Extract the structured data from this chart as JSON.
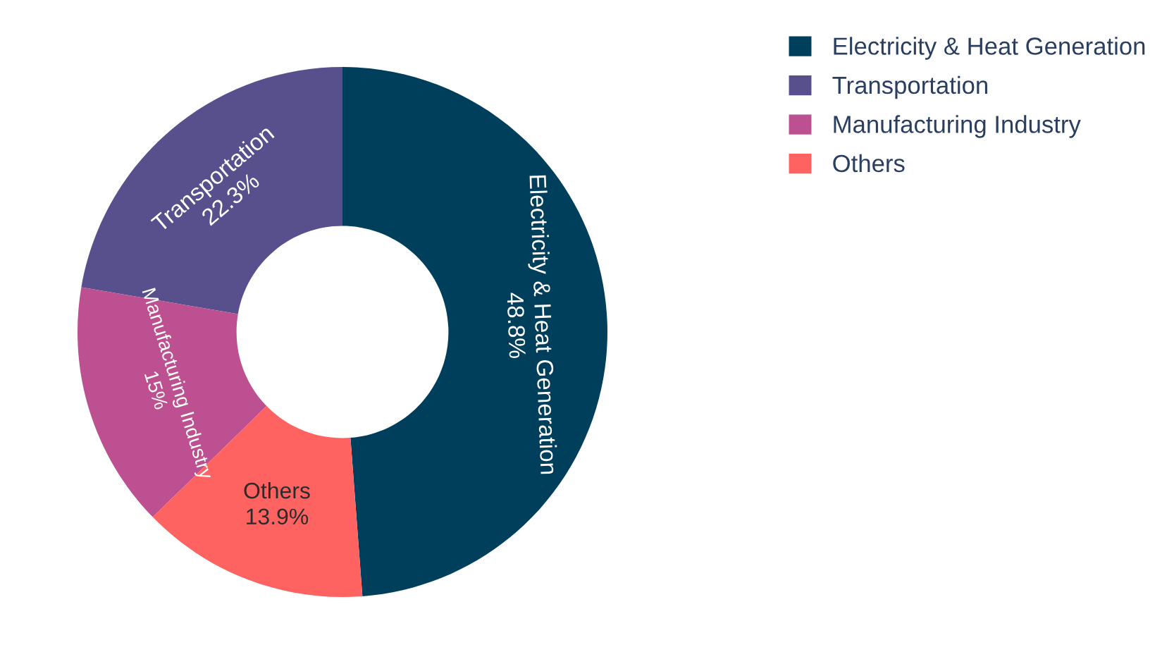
{
  "chart_data": {
    "type": "donut",
    "categories": [
      "Electricity & Heat Generation",
      "Transportation",
      "Manufacturing Industry",
      "Others"
    ],
    "values": [
      48.8,
      22.3,
      15,
      13.9
    ],
    "colors": [
      "#003f5c",
      "#58508d",
      "#bc5090",
      "#ff6361"
    ],
    "value_labels": [
      "48.8%",
      "22.3%",
      "15%",
      "13.9%"
    ],
    "legend": "top right"
  }
}
